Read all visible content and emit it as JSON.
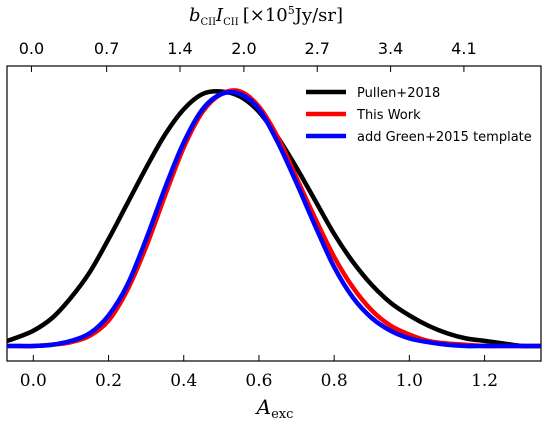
{
  "chart_data": {
    "type": "line",
    "xlabel": "A_exc",
    "xlabel_main": "A",
    "xlabel_sub": "exc",
    "top_xlabel": "b_CII I_CII [×10^5 Jy/sr]",
    "top_xlabel_parts": {
      "b": "b",
      "sub1": "CII",
      "I": "I",
      "sub2": "CII",
      "bracket_open": "[×10",
      "exp": "5",
      "units": "Jy/sr]"
    },
    "ylabel": "",
    "xlim": [
      -0.07,
      1.35
    ],
    "ylim": [
      0.0,
      1.1
    ],
    "yticks_visible": false,
    "grid": false,
    "legend_position": "top-right",
    "xticks": [
      {
        "value": 0.0,
        "label": "0.0"
      },
      {
        "value": 0.2,
        "label": "0.2"
      },
      {
        "value": 0.4,
        "label": "0.4"
      },
      {
        "value": 0.6,
        "label": "0.6"
      },
      {
        "value": 0.8,
        "label": "0.8"
      },
      {
        "value": 1.0,
        "label": "1.0"
      },
      {
        "value": 1.2,
        "label": "1.2"
      }
    ],
    "top_xticks": [
      {
        "value": -0.005,
        "label": "0.0"
      },
      {
        "value": 0.195,
        "label": "0.7"
      },
      {
        "value": 0.39,
        "label": "1.4"
      },
      {
        "value": 0.56,
        "label": "2.0"
      },
      {
        "value": 0.755,
        "label": "2.7"
      },
      {
        "value": 0.95,
        "label": "3.4"
      },
      {
        "value": 1.145,
        "label": "4.1"
      }
    ],
    "x": [
      -0.07,
      -0.05,
      0.0,
      0.05,
      0.1,
      0.15,
      0.2,
      0.25,
      0.3,
      0.35,
      0.4,
      0.45,
      0.5,
      0.55,
      0.6,
      0.65,
      0.7,
      0.75,
      0.8,
      0.85,
      0.9,
      0.95,
      1.0,
      1.05,
      1.1,
      1.15,
      1.2,
      1.25,
      1.3,
      1.35
    ],
    "series": [
      {
        "name": "Pullen+2018",
        "color": "#000000",
        "values": [
          0.02,
          0.03,
          0.06,
          0.11,
          0.19,
          0.29,
          0.42,
          0.56,
          0.7,
          0.83,
          0.93,
          0.99,
          1.0,
          0.98,
          0.92,
          0.82,
          0.7,
          0.57,
          0.44,
          0.33,
          0.24,
          0.17,
          0.12,
          0.08,
          0.05,
          0.03,
          0.02,
          0.01,
          0.0,
          0.0
        ]
      },
      {
        "name": "This Work",
        "color": "#ff0000",
        "values": [
          0.0,
          0.0,
          0.0,
          0.005,
          0.015,
          0.04,
          0.1,
          0.22,
          0.39,
          0.59,
          0.78,
          0.92,
          0.99,
          1.0,
          0.94,
          0.82,
          0.66,
          0.5,
          0.35,
          0.23,
          0.14,
          0.08,
          0.045,
          0.02,
          0.01,
          0.005,
          0.0,
          0.0,
          0.0,
          0.0
        ]
      },
      {
        "name": "add Green+2015 template",
        "color": "#0000ff",
        "values": [
          0.0,
          0.0,
          0.0,
          0.005,
          0.02,
          0.05,
          0.12,
          0.24,
          0.42,
          0.62,
          0.8,
          0.93,
          0.99,
          0.99,
          0.93,
          0.8,
          0.64,
          0.47,
          0.31,
          0.19,
          0.11,
          0.06,
          0.03,
          0.015,
          0.005,
          0.0,
          0.0,
          0.0,
          0.0,
          0.0
        ]
      }
    ]
  }
}
